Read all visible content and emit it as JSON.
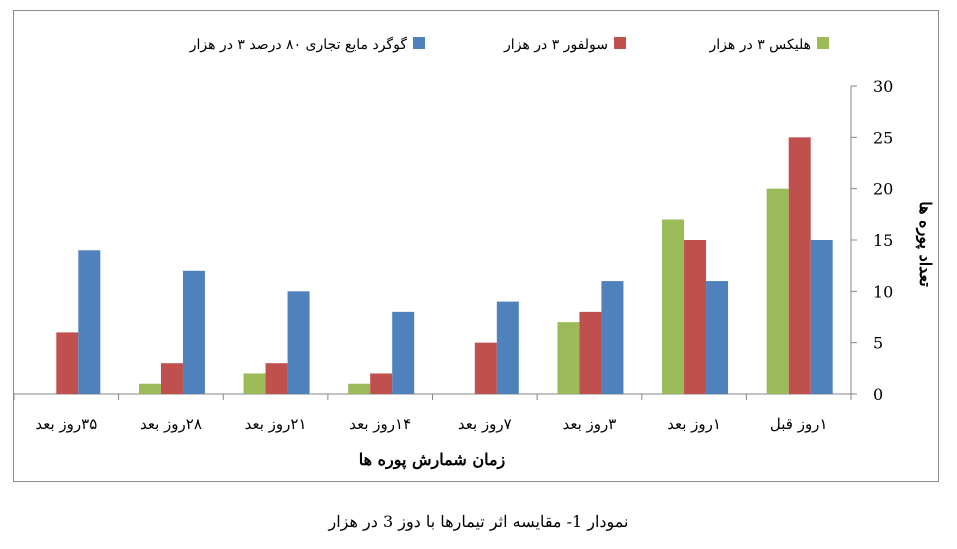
{
  "chart_data": {
    "type": "bar",
    "categories": [
      "1روز قبل",
      "1روز بعد",
      "3روز بعد",
      "7روز بعد",
      "14روز بعد",
      "21روز بعد",
      "28روز بعد",
      "35روز بعد"
    ],
    "series": [
      {
        "name": "هلیکس ۳ در هزار",
        "color": "#9bbb59",
        "values": [
          20,
          17,
          7,
          0,
          1,
          2,
          1,
          0
        ]
      },
      {
        "name": "سولفور ۳ در هزار",
        "color": "#c0504d",
        "values": [
          25,
          15,
          8,
          5,
          2,
          3,
          3,
          6
        ]
      },
      {
        "name": "گوگرد مایع تجاری ۸۰ درصد ۳ در هزار",
        "color": "#4f81bd",
        "values": [
          15,
          11,
          11,
          9,
          8,
          10,
          12,
          14
        ]
      }
    ],
    "xlabel": "زمان شمارش پوره ها",
    "ylabel": "تعداد پوره ها",
    "ylim": [
      0,
      30
    ],
    "yticks": [
      0,
      5,
      10,
      15,
      20,
      25,
      30
    ],
    "ytick_labels": [
      "0",
      "5",
      "10",
      "15",
      "20",
      "25",
      "30"
    ],
    "x_tick_labels": [
      "۱روز قبل",
      "۱روز بعد",
      "۳روز بعد",
      "۷روز بعد",
      "۱۴روز بعد",
      "۲۱روز بعد",
      "۲۸روز بعد",
      "۳۵روز بعد"
    ],
    "x_direction": "right-to-left",
    "y_axis_side": "right",
    "grid": false,
    "legend_position": "top"
  },
  "caption": "نمودار 1- مقایسه اثر تیمارها با دوز 3 در هزار"
}
